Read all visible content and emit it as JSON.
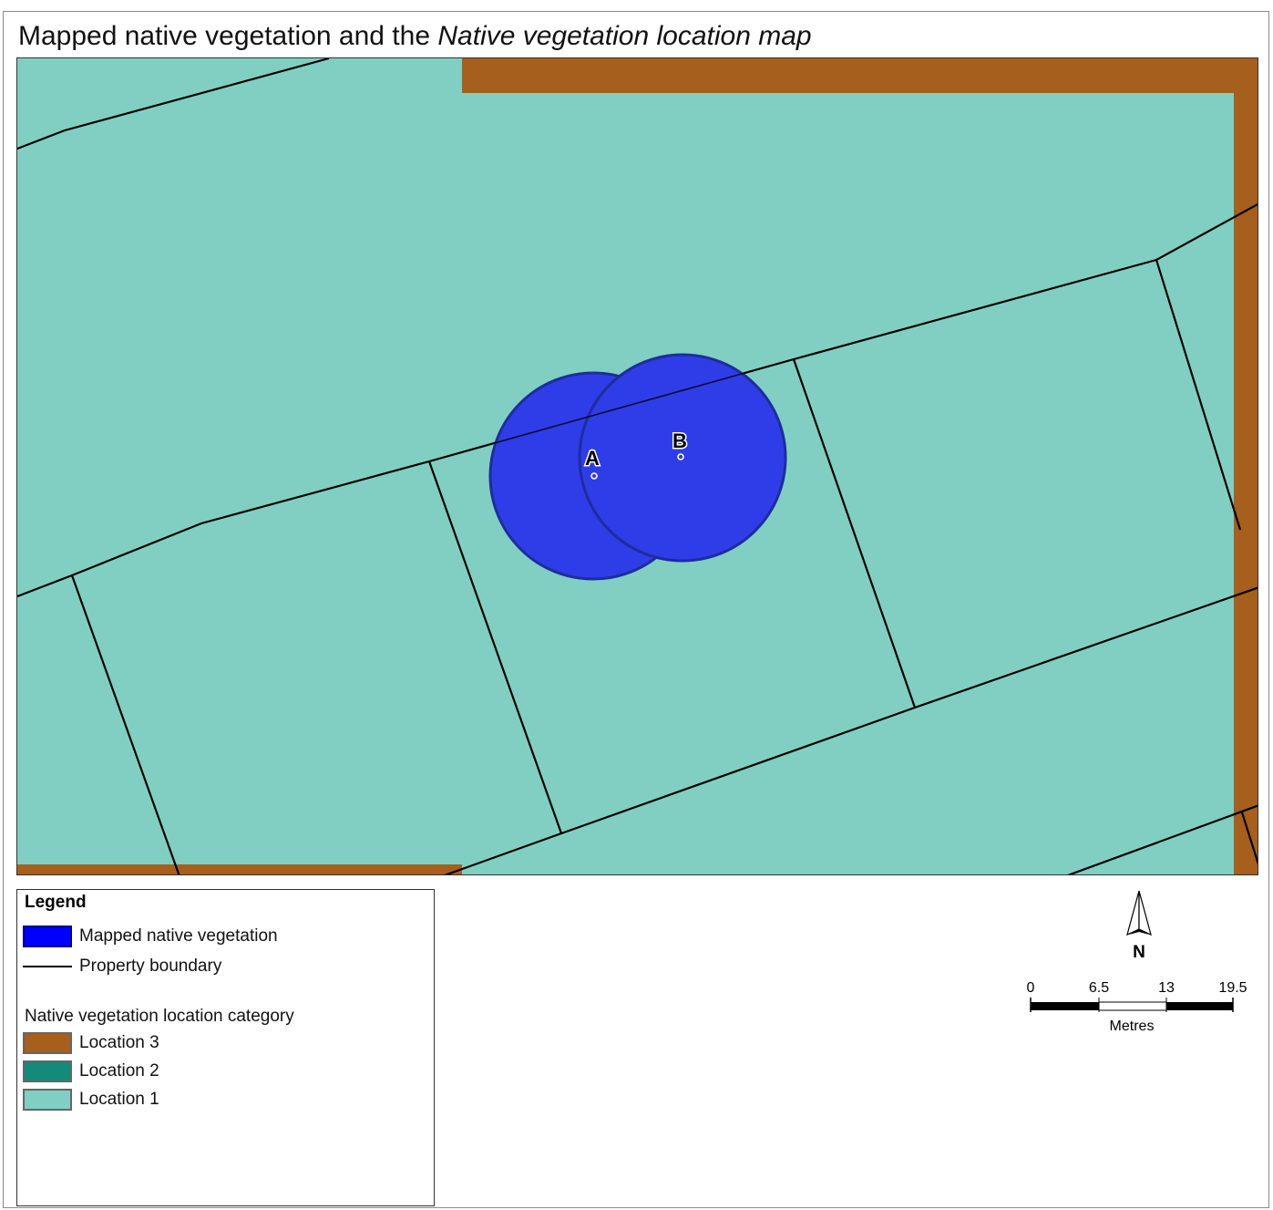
{
  "title": {
    "prefix": "Mapped native vegetation and the ",
    "italic": "Native vegetation location map"
  },
  "map": {
    "colors": {
      "location_1": "#80cfc2",
      "location_2": "#138a7a",
      "location_3": "#a65f1c",
      "vegetation": "#2f3de8",
      "vegetation_outline": "#1d2d9c",
      "boundary": "#000000"
    },
    "points": [
      {
        "label": "A"
      },
      {
        "label": "B"
      }
    ]
  },
  "legend": {
    "title": "Legend",
    "items": [
      {
        "label": "Mapped native vegetation",
        "symbol": "fill",
        "color": "#0000ff"
      },
      {
        "label": "Property boundary",
        "symbol": "line",
        "color": "#000000"
      }
    ],
    "category_heading": "Native vegetation location category",
    "categories": [
      {
        "label": "Location 3",
        "color": "#a65f1c"
      },
      {
        "label": "Location 2",
        "color": "#138a7a"
      },
      {
        "label": "Location 1",
        "color": "#80cfc2"
      }
    ]
  },
  "north_arrow": {
    "label": "N",
    "icon": "north-arrow-icon"
  },
  "scale_bar": {
    "ticks": [
      "0",
      "6.5",
      "13",
      "19.5"
    ],
    "units": "Metres"
  }
}
